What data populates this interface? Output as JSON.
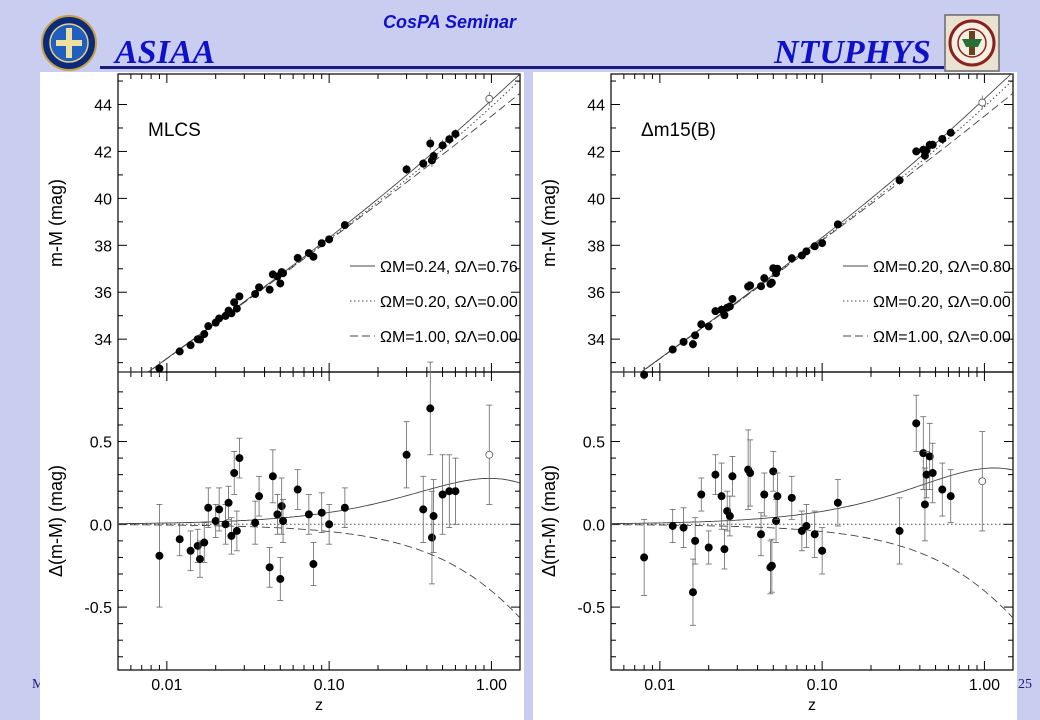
{
  "header": {
    "left_brand": "ASIAA",
    "center_title": "CosPA  Seminar",
    "right_brand": "NTUPHYS",
    "left_logo_icon": "academia-sinica-seal-icon",
    "right_logo_icon": "ntu-emblem-icon",
    "accent_color": "#1010c8",
    "slide_bg": "#c9cdf0"
  },
  "footer": {
    "left_fragment": "M",
    "right_fragment": "25"
  },
  "chart_data": [
    {
      "type": "scatter",
      "title": "",
      "panel_label": "MLCS",
      "xlabel": "z",
      "x_scale": "log",
      "xlim": [
        0.005,
        1.5
      ],
      "xticks": [
        "0.01",
        "0.10",
        "1.00"
      ],
      "top": {
        "ylabel": "m-M (mag)",
        "ylim": [
          32.6,
          45.3
        ],
        "yticks": [
          "34",
          "36",
          "38",
          "40",
          "42",
          "44"
        ],
        "legend_position": "right",
        "legend": [
          {
            "label": "ΩM=0.24, ΩΛ=0.76",
            "style": "solid"
          },
          {
            "label": "ΩM=0.20, ΩΛ=0.00",
            "style": "dotted"
          },
          {
            "label": "ΩM=1.00, ΩΛ=0.00",
            "style": "dashed"
          }
        ]
      },
      "bottom": {
        "ylabel": "Δ(m-M) (mag)",
        "ylim": [
          -0.88,
          0.92
        ],
        "yticks": [
          "-0.5",
          "0.0",
          "0.5"
        ]
      },
      "series": [
        {
          "z": 0.009,
          "dm": -0.19,
          "err": 0.31
        },
        {
          "z": 0.012,
          "dm": -0.09,
          "err": 0.1
        },
        {
          "z": 0.014,
          "dm": -0.16,
          "err": 0.12
        },
        {
          "z": 0.0155,
          "dm": -0.13,
          "err": 0.1
        },
        {
          "z": 0.016,
          "dm": -0.21,
          "err": 0.11
        },
        {
          "z": 0.017,
          "dm": -0.11,
          "err": 0.12
        },
        {
          "z": 0.018,
          "dm": 0.1,
          "err": 0.12
        },
        {
          "z": 0.02,
          "dm": 0.02,
          "err": 0.1
        },
        {
          "z": 0.021,
          "dm": 0.09,
          "err": 0.13
        },
        {
          "z": 0.023,
          "dm": 0.0,
          "err": 0.12
        },
        {
          "z": 0.024,
          "dm": 0.13,
          "err": 0.1
        },
        {
          "z": 0.025,
          "dm": -0.07,
          "err": 0.11
        },
        {
          "z": 0.026,
          "dm": 0.31,
          "err": 0.13
        },
        {
          "z": 0.027,
          "dm": -0.04,
          "err": 0.12
        },
        {
          "z": 0.028,
          "dm": 0.4,
          "err": 0.12
        },
        {
          "z": 0.035,
          "dm": 0.01,
          "err": 0.13
        },
        {
          "z": 0.037,
          "dm": 0.17,
          "err": 0.12
        },
        {
          "z": 0.043,
          "dm": -0.26,
          "err": 0.12
        },
        {
          "z": 0.045,
          "dm": 0.29,
          "err": 0.16
        },
        {
          "z": 0.048,
          "dm": 0.06,
          "err": 0.12
        },
        {
          "z": 0.05,
          "dm": -0.33,
          "err": 0.13
        },
        {
          "z": 0.051,
          "dm": 0.11,
          "err": 0.17
        },
        {
          "z": 0.052,
          "dm": 0.02,
          "err": 0.13
        },
        {
          "z": 0.064,
          "dm": 0.21,
          "err": 0.12
        },
        {
          "z": 0.075,
          "dm": 0.06,
          "err": 0.12
        },
        {
          "z": 0.08,
          "dm": -0.24,
          "err": 0.13
        },
        {
          "z": 0.09,
          "dm": 0.07,
          "err": 0.12
        },
        {
          "z": 0.1,
          "dm": 0.0,
          "err": 0.12
        },
        {
          "z": 0.125,
          "dm": 0.1,
          "err": 0.12
        },
        {
          "z": 0.3,
          "dm": 0.42,
          "err": 0.2
        },
        {
          "z": 0.38,
          "dm": 0.09,
          "err": 0.2
        },
        {
          "z": 0.42,
          "dm": 0.7,
          "err": 0.28
        },
        {
          "z": 0.43,
          "dm": -0.08,
          "err": 0.28
        },
        {
          "z": 0.44,
          "dm": 0.05,
          "err": 0.22
        },
        {
          "z": 0.5,
          "dm": 0.18,
          "err": 0.24
        },
        {
          "z": 0.55,
          "dm": 0.2,
          "err": 0.22
        },
        {
          "z": 0.6,
          "dm": 0.2,
          "err": 0.2
        },
        {
          "z": 0.97,
          "dm": 0.42,
          "err": 0.3,
          "open": true
        }
      ],
      "models": {
        "lambda": [
          0.24,
          0.76
        ],
        "open": [
          0.2,
          0.0
        ],
        "flat_matter": [
          1.0,
          0.0
        ]
      }
    },
    {
      "type": "scatter",
      "title": "",
      "panel_label": "Δm15(B)",
      "xlabel": "z",
      "x_scale": "log",
      "xlim": [
        0.005,
        1.5
      ],
      "xticks": [
        "0.01",
        "0.10",
        "1.00"
      ],
      "top": {
        "ylabel": "m-M (mag)",
        "ylim": [
          32.6,
          45.3
        ],
        "yticks": [
          "34",
          "36",
          "38",
          "40",
          "42",
          "44"
        ],
        "legend_position": "right",
        "legend": [
          {
            "label": "ΩM=0.20, ΩΛ=0.80",
            "style": "solid"
          },
          {
            "label": "ΩM=0.20, ΩΛ=0.00",
            "style": "dotted"
          },
          {
            "label": "ΩM=1.00, ΩΛ=0.00",
            "style": "dashed"
          }
        ]
      },
      "bottom": {
        "ylabel": "Δ(m-M) (mag)",
        "ylim": [
          -0.88,
          0.92
        ],
        "yticks": [
          "-0.5",
          "0.0",
          "0.5"
        ]
      },
      "series": [
        {
          "z": 0.008,
          "dm": -0.2,
          "err": 0.23
        },
        {
          "z": 0.012,
          "dm": -0.01,
          "err": 0.1
        },
        {
          "z": 0.014,
          "dm": -0.02,
          "err": 0.12
        },
        {
          "z": 0.016,
          "dm": -0.41,
          "err": 0.2
        },
        {
          "z": 0.0165,
          "dm": -0.1,
          "err": 0.14
        },
        {
          "z": 0.018,
          "dm": 0.18,
          "err": 0.1
        },
        {
          "z": 0.02,
          "dm": -0.14,
          "err": 0.1
        },
        {
          "z": 0.022,
          "dm": 0.3,
          "err": 0.12
        },
        {
          "z": 0.024,
          "dm": 0.17,
          "err": 0.2
        },
        {
          "z": 0.025,
          "dm": -0.15,
          "err": 0.12
        },
        {
          "z": 0.026,
          "dm": 0.08,
          "err": 0.12
        },
        {
          "z": 0.027,
          "dm": 0.05,
          "err": 0.12
        },
        {
          "z": 0.028,
          "dm": 0.29,
          "err": 0.12
        },
        {
          "z": 0.035,
          "dm": 0.33,
          "err": 0.24
        },
        {
          "z": 0.036,
          "dm": 0.31,
          "err": 0.2
        },
        {
          "z": 0.042,
          "dm": -0.06,
          "err": 0.13
        },
        {
          "z": 0.044,
          "dm": 0.18,
          "err": 0.13
        },
        {
          "z": 0.048,
          "dm": -0.26,
          "err": 0.16
        },
        {
          "z": 0.049,
          "dm": -0.25,
          "err": 0.16
        },
        {
          "z": 0.05,
          "dm": 0.32,
          "err": 0.12
        },
        {
          "z": 0.052,
          "dm": 0.02,
          "err": 0.13
        },
        {
          "z": 0.053,
          "dm": 0.17,
          "err": 0.14
        },
        {
          "z": 0.065,
          "dm": 0.16,
          "err": 0.13
        },
        {
          "z": 0.075,
          "dm": -0.04,
          "err": 0.12
        },
        {
          "z": 0.08,
          "dm": -0.01,
          "err": 0.13
        },
        {
          "z": 0.09,
          "dm": -0.06,
          "err": 0.14
        },
        {
          "z": 0.1,
          "dm": -0.16,
          "err": 0.14
        },
        {
          "z": 0.125,
          "dm": 0.13,
          "err": 0.14
        },
        {
          "z": 0.3,
          "dm": -0.04,
          "err": 0.2
        },
        {
          "z": 0.38,
          "dm": 0.61,
          "err": 0.17
        },
        {
          "z": 0.42,
          "dm": 0.43,
          "err": 0.22
        },
        {
          "z": 0.43,
          "dm": 0.12,
          "err": 0.22
        },
        {
          "z": 0.44,
          "dm": 0.3,
          "err": 0.14
        },
        {
          "z": 0.46,
          "dm": 0.41,
          "err": 0.2
        },
        {
          "z": 0.48,
          "dm": 0.31,
          "err": 0.18
        },
        {
          "z": 0.55,
          "dm": 0.21,
          "err": 0.16
        },
        {
          "z": 0.62,
          "dm": 0.17,
          "err": 0.16
        },
        {
          "z": 0.97,
          "dm": 0.26,
          "err": 0.3,
          "open": true
        }
      ],
      "models": {
        "lambda": [
          0.2,
          0.8
        ],
        "open": [
          0.2,
          0.0
        ],
        "flat_matter": [
          1.0,
          0.0
        ]
      }
    }
  ]
}
